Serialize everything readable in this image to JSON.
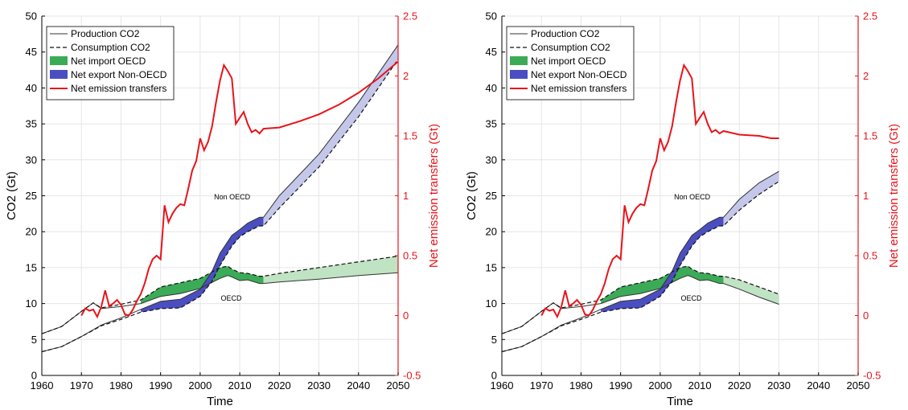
{
  "chart_data": [
    {
      "type": "line",
      "panel": "left",
      "xlabel": "Time",
      "ylabel": "CO2 (Gt)",
      "y2label": "Net emission transfers (Gt)",
      "xlim": [
        1960,
        2050
      ],
      "ylim": [
        0,
        50
      ],
      "y2lim": [
        -0.5,
        2.5
      ],
      "xticks": [
        "1960",
        "1970",
        "1980",
        "1990",
        "2000",
        "2010",
        "2020",
        "2030",
        "2040",
        "2050"
      ],
      "yticks": [
        "0",
        "5",
        "10",
        "15",
        "20",
        "25",
        "30",
        "35",
        "40",
        "45",
        "50"
      ],
      "y2ticks": [
        "-0.5",
        "0",
        "0.5",
        "1",
        "1.5",
        "2",
        "2.5"
      ],
      "legend": [
        "Production CO2",
        "Consumption CO2",
        "Net import OECD",
        "Net export Non-OECD",
        "Net emission transfers"
      ],
      "legend_position": "top-left",
      "annotations": [
        "Non OECD",
        "OECD"
      ],
      "colors": {
        "transfers": "#e8141b",
        "oecd_hist": "#3cab57",
        "oecd_proj": "#bfe3c3",
        "non_hist": "#4a4ec0",
        "non_proj": "#c4c6ea"
      },
      "series": [
        {
          "name": "Production CO2",
          "group": "OECD",
          "x": [
            1960,
            1965,
            1970,
            1973,
            1975,
            1980,
            1985,
            1990,
            1995,
            2000,
            2005,
            2007,
            2008,
            2010,
            2012,
            2015,
            2016,
            2020,
            2030,
            2040,
            2050
          ],
          "values": [
            5.8,
            6.8,
            8.9,
            10.1,
            9.3,
            9.6,
            10.0,
            11.0,
            11.4,
            12.1,
            13.5,
            13.9,
            13.7,
            13.2,
            13.3,
            12.8,
            12.8,
            13.0,
            13.4,
            13.9,
            14.3
          ]
        },
        {
          "name": "Consumption CO2",
          "group": "OECD",
          "x": [
            1960,
            1965,
            1970,
            1973,
            1975,
            1980,
            1985,
            1990,
            1995,
            2000,
            2005,
            2007,
            2008,
            2010,
            2012,
            2015,
            2016,
            2020,
            2030,
            2040,
            2050
          ],
          "values": [
            5.8,
            6.8,
            8.9,
            10.1,
            9.4,
            9.9,
            10.5,
            12.3,
            12.9,
            13.5,
            15.0,
            15.2,
            14.8,
            14.3,
            14.2,
            13.8,
            13.8,
            14.2,
            15.0,
            15.8,
            16.6
          ]
        },
        {
          "name": "Production CO2",
          "group": "Non OECD",
          "x": [
            1960,
            1965,
            1970,
            1975,
            1980,
            1985,
            1990,
            1995,
            2000,
            2003,
            2005,
            2008,
            2010,
            2012,
            2015,
            2016,
            2020,
            2030,
            2040,
            2050
          ],
          "values": [
            3.3,
            4.0,
            5.4,
            7.0,
            8.0,
            9.2,
            10.3,
            10.6,
            12.0,
            14.5,
            17.0,
            19.5,
            20.3,
            21.2,
            22.0,
            22.0,
            25.0,
            30.8,
            38.0,
            46.0
          ]
        },
        {
          "name": "Consumption CO2",
          "group": "Non OECD",
          "x": [
            1960,
            1965,
            1970,
            1975,
            1980,
            1985,
            1990,
            1995,
            2000,
            2003,
            2005,
            2008,
            2010,
            2012,
            2015,
            2016,
            2020,
            2030,
            2040,
            2050
          ],
          "values": [
            3.3,
            4.0,
            5.4,
            6.9,
            7.8,
            8.8,
            9.3,
            9.4,
            11.0,
            13.1,
            15.3,
            18.0,
            19.3,
            20.0,
            20.8,
            20.8,
            23.3,
            29.0,
            36.0,
            44.0
          ]
        },
        {
          "name": "Net emission transfers",
          "x": [
            1970,
            1971,
            1972,
            1973,
            1974,
            1975,
            1976,
            1977,
            1978,
            1979,
            1980,
            1981,
            1982,
            1983,
            1984,
            1985,
            1986,
            1987,
            1988,
            1989,
            1990,
            1991,
            1992,
            1993,
            1994,
            1995,
            1996,
            1997,
            1998,
            1999,
            2000,
            2001,
            2002,
            2003,
            2004,
            2005,
            2006,
            2007,
            2008,
            2009,
            2010,
            2011,
            2012,
            2013,
            2014,
            2015,
            2016,
            2020,
            2025,
            2030,
            2035,
            2040,
            2045,
            2050
          ],
          "values": [
            0,
            0.06,
            0.04,
            0.05,
            -0.01,
            0.07,
            0.21,
            0.08,
            0.1,
            0.13,
            0.09,
            0.01,
            0.0,
            0.05,
            0.12,
            0.18,
            0.27,
            0.39,
            0.47,
            0.5,
            0.47,
            0.92,
            0.78,
            0.85,
            0.9,
            0.93,
            0.92,
            1.06,
            1.21,
            1.29,
            1.48,
            1.38,
            1.45,
            1.58,
            1.78,
            1.96,
            2.09,
            2.04,
            1.98,
            1.6,
            1.65,
            1.7,
            1.6,
            1.53,
            1.55,
            1.52,
            1.56,
            1.57,
            1.62,
            1.68,
            1.76,
            1.86,
            1.98,
            2.12
          ]
        }
      ]
    },
    {
      "type": "line",
      "panel": "right",
      "xlabel": "Time",
      "ylabel": "CO2 (Gt)",
      "y2label": "Net emission transfers (Gt)",
      "xlim": [
        1960,
        2050
      ],
      "ylim": [
        0,
        50
      ],
      "y2lim": [
        -0.5,
        2.5
      ],
      "xticks": [
        "1960",
        "1970",
        "1980",
        "1990",
        "2000",
        "2010",
        "2020",
        "2030",
        "2040",
        "2050"
      ],
      "yticks": [
        "0",
        "5",
        "10",
        "15",
        "20",
        "25",
        "30",
        "35",
        "40",
        "45",
        "50"
      ],
      "y2ticks": [
        "-0.5",
        "0",
        "0.5",
        "1",
        "1.5",
        "2",
        "2.5"
      ],
      "legend": [
        "Production CO2",
        "Consumption CO2",
        "Net import OECD",
        "Net export Non-OECD",
        "Net emission transfers"
      ],
      "legend_position": "top-left",
      "annotations": [
        "Non OECD",
        "OECD"
      ],
      "colors": {
        "transfers": "#e8141b",
        "oecd_hist": "#3cab57",
        "oecd_proj": "#bfe3c3",
        "non_hist": "#4a4ec0",
        "non_proj": "#c4c6ea"
      },
      "series": [
        {
          "name": "Production CO2",
          "group": "OECD",
          "x": [
            1960,
            1965,
            1970,
            1973,
            1975,
            1980,
            1985,
            1990,
            1995,
            2000,
            2005,
            2007,
            2008,
            2010,
            2012,
            2015,
            2016,
            2020,
            2025,
            2030
          ],
          "values": [
            5.8,
            6.8,
            8.9,
            10.1,
            9.3,
            9.6,
            10.0,
            11.0,
            11.4,
            12.1,
            13.5,
            13.9,
            13.7,
            13.2,
            13.3,
            12.8,
            12.8,
            12.0,
            10.9,
            9.9
          ]
        },
        {
          "name": "Consumption CO2",
          "group": "OECD",
          "x": [
            1960,
            1965,
            1970,
            1973,
            1975,
            1980,
            1985,
            1990,
            1995,
            2000,
            2005,
            2007,
            2008,
            2010,
            2012,
            2015,
            2016,
            2020,
            2025,
            2030
          ],
          "values": [
            5.8,
            6.8,
            8.9,
            10.1,
            9.4,
            9.9,
            10.5,
            12.3,
            12.9,
            13.5,
            15.0,
            15.2,
            14.8,
            14.3,
            14.2,
            13.8,
            13.8,
            13.3,
            12.3,
            11.3
          ]
        },
        {
          "name": "Production CO2",
          "group": "Non OECD",
          "x": [
            1960,
            1965,
            1970,
            1975,
            1980,
            1985,
            1990,
            1995,
            2000,
            2003,
            2005,
            2008,
            2010,
            2012,
            2015,
            2016,
            2020,
            2025,
            2030
          ],
          "values": [
            3.3,
            4.0,
            5.4,
            7.0,
            8.0,
            9.2,
            10.3,
            10.6,
            12.0,
            14.5,
            17.0,
            19.5,
            20.3,
            21.2,
            22.0,
            22.0,
            24.5,
            26.8,
            28.4
          ]
        },
        {
          "name": "Consumption CO2",
          "group": "Non OECD",
          "x": [
            1960,
            1965,
            1970,
            1975,
            1980,
            1985,
            1990,
            1995,
            2000,
            2003,
            2005,
            2008,
            2010,
            2012,
            2015,
            2016,
            2020,
            2025,
            2030
          ],
          "values": [
            3.3,
            4.0,
            5.4,
            6.9,
            7.8,
            8.8,
            9.3,
            9.4,
            11.0,
            13.1,
            15.3,
            18.0,
            19.3,
            20.0,
            20.8,
            20.8,
            23.0,
            25.2,
            27.0
          ]
        },
        {
          "name": "Net emission transfers",
          "x": [
            1970,
            1971,
            1972,
            1973,
            1974,
            1975,
            1976,
            1977,
            1978,
            1979,
            1980,
            1981,
            1982,
            1983,
            1984,
            1985,
            1986,
            1987,
            1988,
            1989,
            1990,
            1991,
            1992,
            1993,
            1994,
            1995,
            1996,
            1997,
            1998,
            1999,
            2000,
            2001,
            2002,
            2003,
            2004,
            2005,
            2006,
            2007,
            2008,
            2009,
            2010,
            2011,
            2012,
            2013,
            2014,
            2015,
            2016,
            2020,
            2025,
            2028,
            2030
          ],
          "values": [
            0,
            0.06,
            0.04,
            0.05,
            -0.01,
            0.07,
            0.21,
            0.08,
            0.1,
            0.13,
            0.09,
            0.01,
            0.0,
            0.05,
            0.12,
            0.18,
            0.27,
            0.39,
            0.47,
            0.5,
            0.47,
            0.92,
            0.78,
            0.85,
            0.9,
            0.93,
            0.92,
            1.06,
            1.21,
            1.29,
            1.48,
            1.38,
            1.45,
            1.58,
            1.78,
            1.96,
            2.09,
            2.04,
            1.98,
            1.6,
            1.65,
            1.7,
            1.6,
            1.53,
            1.55,
            1.52,
            1.54,
            1.51,
            1.5,
            1.48,
            1.48
          ]
        }
      ]
    }
  ]
}
